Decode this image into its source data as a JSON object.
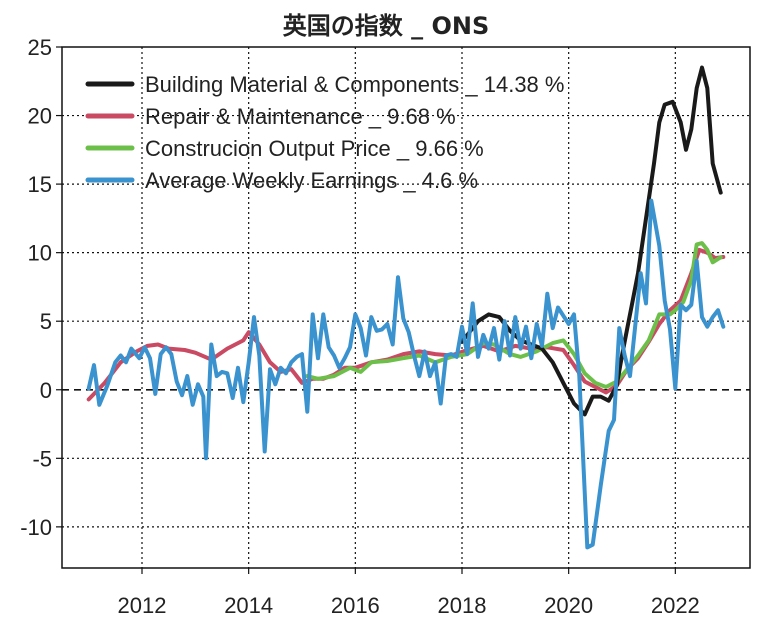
{
  "chart_data": {
    "type": "line",
    "title": "英国の指数 _ ONS",
    "xlabel": "",
    "ylabel": "",
    "xlim": [
      2010.5,
      2023.4
    ],
    "ylim": [
      -13,
      25
    ],
    "x_ticks": [
      2012,
      2014,
      2016,
      2018,
      2020,
      2022
    ],
    "x_tick_labels": [
      "2012",
      "2014",
      "2016",
      "2018",
      "2020",
      "2022"
    ],
    "y_ticks": [
      25,
      20,
      15,
      10,
      5,
      0,
      -5,
      -10
    ],
    "y_tick_labels": [
      "25",
      "20",
      "15",
      "10",
      "5",
      "0",
      "-5",
      "-10"
    ],
    "grid": "dotted",
    "zero_line": "dashed",
    "legend_position": "top-left",
    "series": [
      {
        "name": "Building Material & Components _ 14.38 %",
        "color": "#1a1a1a",
        "points": [
          [
            2018.0,
            3.5
          ],
          [
            2018.3,
            5.0
          ],
          [
            2018.5,
            5.5
          ],
          [
            2018.7,
            5.3
          ],
          [
            2018.9,
            4.3
          ],
          [
            2019.1,
            3.6
          ],
          [
            2019.3,
            3.3
          ],
          [
            2019.5,
            3.0
          ],
          [
            2019.7,
            2.0
          ],
          [
            2019.9,
            0.5
          ],
          [
            2020.1,
            -1.0
          ],
          [
            2020.3,
            -1.8
          ],
          [
            2020.45,
            -0.5
          ],
          [
            2020.6,
            -0.5
          ],
          [
            2020.75,
            -0.8
          ],
          [
            2020.9,
            0.3
          ],
          [
            2021.0,
            2.5
          ],
          [
            2021.1,
            4.5
          ],
          [
            2021.2,
            6.5
          ],
          [
            2021.3,
            8.5
          ],
          [
            2021.45,
            12.5
          ],
          [
            2021.6,
            16.5
          ],
          [
            2021.7,
            19.5
          ],
          [
            2021.8,
            20.8
          ],
          [
            2021.95,
            21.0
          ],
          [
            2022.1,
            19.5
          ],
          [
            2022.2,
            17.5
          ],
          [
            2022.3,
            19.0
          ],
          [
            2022.4,
            22.0
          ],
          [
            2022.5,
            23.5
          ],
          [
            2022.6,
            22.0
          ],
          [
            2022.7,
            16.5
          ],
          [
            2022.85,
            14.38
          ]
        ]
      },
      {
        "name": "Repair & Maintenance _ 9.68 %",
        "color": "#c94a62",
        "points": [
          [
            2011.0,
            -0.7
          ],
          [
            2011.3,
            0.5
          ],
          [
            2011.6,
            2.0
          ],
          [
            2011.9,
            2.8
          ],
          [
            2012.1,
            3.2
          ],
          [
            2012.3,
            3.3
          ],
          [
            2012.5,
            3.0
          ],
          [
            2012.8,
            2.9
          ],
          [
            2013.0,
            2.7
          ],
          [
            2013.3,
            2.2
          ],
          [
            2013.6,
            3.0
          ],
          [
            2013.9,
            3.6
          ],
          [
            2014.0,
            4.2
          ],
          [
            2014.2,
            3.3
          ],
          [
            2014.4,
            2.0
          ],
          [
            2014.6,
            1.3
          ],
          [
            2014.8,
            1.5
          ],
          [
            2015.0,
            0.5
          ],
          [
            2015.2,
            0.8
          ],
          [
            2015.4,
            0.8
          ],
          [
            2015.6,
            1.1
          ],
          [
            2015.8,
            1.6
          ],
          [
            2016.0,
            1.6
          ],
          [
            2016.3,
            2.0
          ],
          [
            2016.6,
            2.2
          ],
          [
            2016.9,
            2.6
          ],
          [
            2017.2,
            2.8
          ],
          [
            2017.5,
            2.6
          ],
          [
            2017.8,
            2.5
          ],
          [
            2018.1,
            2.9
          ],
          [
            2018.4,
            3.2
          ],
          [
            2018.7,
            2.8
          ],
          [
            2019.0,
            3.2
          ],
          [
            2019.3,
            3.0
          ],
          [
            2019.6,
            3.1
          ],
          [
            2019.9,
            2.9
          ],
          [
            2020.1,
            1.8
          ],
          [
            2020.3,
            0.6
          ],
          [
            2020.5,
            0.2
          ],
          [
            2020.7,
            -0.2
          ],
          [
            2020.9,
            0.3
          ],
          [
            2021.1,
            1.5
          ],
          [
            2021.3,
            2.3
          ],
          [
            2021.5,
            3.5
          ],
          [
            2021.7,
            4.8
          ],
          [
            2021.9,
            5.8
          ],
          [
            2022.1,
            6.5
          ],
          [
            2022.3,
            8.5
          ],
          [
            2022.45,
            10.2
          ],
          [
            2022.6,
            10.0
          ],
          [
            2022.75,
            9.6
          ],
          [
            2022.9,
            9.68
          ]
        ]
      },
      {
        "name": "Construcion Output Price _ 9.66 %",
        "color": "#6cc04a",
        "points": [
          [
            2015.1,
            1.0
          ],
          [
            2015.3,
            0.8
          ],
          [
            2015.6,
            1.0
          ],
          [
            2015.9,
            1.6
          ],
          [
            2016.1,
            1.3
          ],
          [
            2016.3,
            2.0
          ],
          [
            2016.6,
            2.1
          ],
          [
            2016.9,
            2.3
          ],
          [
            2017.2,
            2.5
          ],
          [
            2017.5,
            2.0
          ],
          [
            2017.8,
            2.4
          ],
          [
            2018.1,
            2.6
          ],
          [
            2018.4,
            3.4
          ],
          [
            2018.6,
            3.3
          ],
          [
            2018.9,
            2.6
          ],
          [
            2019.1,
            2.4
          ],
          [
            2019.4,
            2.8
          ],
          [
            2019.7,
            3.4
          ],
          [
            2019.9,
            3.6
          ],
          [
            2020.1,
            2.6
          ],
          [
            2020.3,
            1.2
          ],
          [
            2020.5,
            0.5
          ],
          [
            2020.7,
            0.2
          ],
          [
            2020.9,
            0.6
          ],
          [
            2021.1,
            1.5
          ],
          [
            2021.3,
            2.5
          ],
          [
            2021.5,
            3.6
          ],
          [
            2021.7,
            5.5
          ],
          [
            2021.9,
            5.5
          ],
          [
            2022.0,
            5.8
          ],
          [
            2022.15,
            6.4
          ],
          [
            2022.3,
            8.0
          ],
          [
            2022.4,
            10.6
          ],
          [
            2022.5,
            10.7
          ],
          [
            2022.6,
            10.2
          ],
          [
            2022.7,
            9.3
          ],
          [
            2022.85,
            9.66
          ]
        ]
      },
      {
        "name": "Average Weekly Earnings _ 4.6 %",
        "color": "#3a93cf",
        "points": [
          [
            2011.0,
            0.1
          ],
          [
            2011.1,
            1.8
          ],
          [
            2011.2,
            -1.1
          ],
          [
            2011.35,
            0.3
          ],
          [
            2011.5,
            2.0
          ],
          [
            2011.6,
            2.5
          ],
          [
            2011.7,
            2.0
          ],
          [
            2011.8,
            3.0
          ],
          [
            2011.95,
            2.3
          ],
          [
            2012.05,
            3.1
          ],
          [
            2012.15,
            2.3
          ],
          [
            2012.25,
            -0.3
          ],
          [
            2012.35,
            2.6
          ],
          [
            2012.45,
            3.1
          ],
          [
            2012.55,
            2.6
          ],
          [
            2012.65,
            0.6
          ],
          [
            2012.75,
            -0.4
          ],
          [
            2012.85,
            1.0
          ],
          [
            2012.95,
            -1.1
          ],
          [
            2013.05,
            0.4
          ],
          [
            2013.15,
            -0.5
          ],
          [
            2013.2,
            -5.0
          ],
          [
            2013.3,
            3.3
          ],
          [
            2013.4,
            1.0
          ],
          [
            2013.5,
            1.3
          ],
          [
            2013.6,
            1.2
          ],
          [
            2013.7,
            -0.6
          ],
          [
            2013.8,
            1.6
          ],
          [
            2013.9,
            -0.9
          ],
          [
            2014.0,
            2.0
          ],
          [
            2014.1,
            5.3
          ],
          [
            2014.2,
            2.5
          ],
          [
            2014.3,
            -4.5
          ],
          [
            2014.4,
            1.5
          ],
          [
            2014.5,
            0.4
          ],
          [
            2014.6,
            1.6
          ],
          [
            2014.7,
            1.2
          ],
          [
            2014.8,
            2.0
          ],
          [
            2014.9,
            2.4
          ],
          [
            2015.0,
            2.6
          ],
          [
            2015.1,
            -1.6
          ],
          [
            2015.2,
            5.5
          ],
          [
            2015.3,
            2.3
          ],
          [
            2015.4,
            5.5
          ],
          [
            2015.5,
            3.1
          ],
          [
            2015.6,
            2.5
          ],
          [
            2015.7,
            1.6
          ],
          [
            2015.8,
            2.3
          ],
          [
            2015.9,
            3.1
          ],
          [
            2016.0,
            5.5
          ],
          [
            2016.1,
            4.5
          ],
          [
            2016.2,
            2.5
          ],
          [
            2016.3,
            5.3
          ],
          [
            2016.4,
            4.3
          ],
          [
            2016.5,
            4.4
          ],
          [
            2016.6,
            4.8
          ],
          [
            2016.7,
            3.3
          ],
          [
            2016.8,
            8.2
          ],
          [
            2016.9,
            5.2
          ],
          [
            2017.0,
            4.2
          ],
          [
            2017.1,
            2.5
          ],
          [
            2017.2,
            1.0
          ],
          [
            2017.3,
            2.8
          ],
          [
            2017.4,
            1.0
          ],
          [
            2017.5,
            2.0
          ],
          [
            2017.6,
            -1.0
          ],
          [
            2017.7,
            2.5
          ],
          [
            2017.8,
            2.6
          ],
          [
            2017.9,
            2.4
          ],
          [
            2018.0,
            4.6
          ],
          [
            2018.1,
            2.6
          ],
          [
            2018.2,
            6.3
          ],
          [
            2018.3,
            2.4
          ],
          [
            2018.4,
            4.0
          ],
          [
            2018.5,
            3.0
          ],
          [
            2018.6,
            4.5
          ],
          [
            2018.7,
            2.2
          ],
          [
            2018.8,
            5.0
          ],
          [
            2018.9,
            2.5
          ],
          [
            2019.0,
            5.3
          ],
          [
            2019.1,
            3.0
          ],
          [
            2019.2,
            4.6
          ],
          [
            2019.3,
            2.3
          ],
          [
            2019.4,
            4.8
          ],
          [
            2019.5,
            3.2
          ],
          [
            2019.6,
            7.0
          ],
          [
            2019.7,
            4.5
          ],
          [
            2019.8,
            6.0
          ],
          [
            2019.9,
            5.4
          ],
          [
            2020.0,
            4.8
          ],
          [
            2020.1,
            5.5
          ],
          [
            2020.2,
            1.0
          ],
          [
            2020.35,
            -11.5
          ],
          [
            2020.45,
            -11.3
          ],
          [
            2020.6,
            -7.0
          ],
          [
            2020.75,
            -3.0
          ],
          [
            2020.85,
            -2.2
          ],
          [
            2020.95,
            4.5
          ],
          [
            2021.05,
            2.5
          ],
          [
            2021.15,
            1.0
          ],
          [
            2021.35,
            8.5
          ],
          [
            2021.45,
            6.3
          ],
          [
            2021.55,
            13.8
          ],
          [
            2021.7,
            10.5
          ],
          [
            2021.8,
            6.5
          ],
          [
            2021.9,
            4.4
          ],
          [
            2022.0,
            0.1
          ],
          [
            2022.1,
            6.2
          ],
          [
            2022.2,
            5.8
          ],
          [
            2022.3,
            6.2
          ],
          [
            2022.4,
            9.4
          ],
          [
            2022.5,
            5.3
          ],
          [
            2022.6,
            4.6
          ],
          [
            2022.7,
            5.3
          ],
          [
            2022.8,
            5.8
          ],
          [
            2022.9,
            4.6
          ]
        ]
      }
    ]
  }
}
